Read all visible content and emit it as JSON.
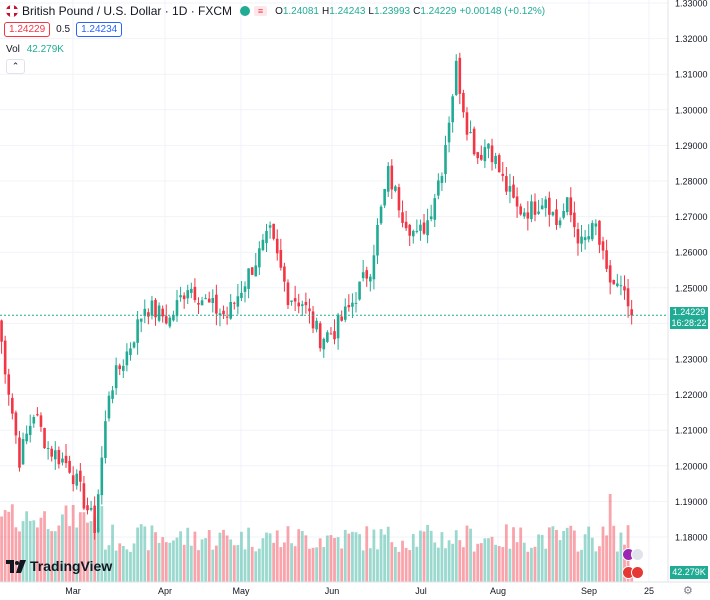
{
  "header": {
    "symbol_title": "British Pound / U.S. Dollar · 1D · FXCM",
    "ohlc": [
      {
        "key": "O",
        "value": "1.24081"
      },
      {
        "key": "H",
        "value": "1.24243"
      },
      {
        "key": "L",
        "value": "1.23993"
      },
      {
        "key": "C",
        "value": "1.24229"
      }
    ],
    "change": "+0.00148 (+0.12%)",
    "sell_price": "1.24229",
    "spread": "0.5",
    "buy_price": "1.24234"
  },
  "volume": {
    "label": "Vol",
    "value": "42.279K"
  },
  "price_axis": {
    "current_price": "1.24229",
    "countdown": "16:28:22",
    "current_volume": "42.279K"
  },
  "brand": {
    "name": "TradingView"
  },
  "colors": {
    "up": "#22ab94",
    "down": "#f23645",
    "grid": "#f0f3fa"
  },
  "chart_data": {
    "type": "candlestick",
    "yticks": [
      "1.33000",
      "1.32000",
      "1.31000",
      "1.30000",
      "1.29000",
      "1.28000",
      "1.27000",
      "1.26000",
      "1.25000",
      "1.24000",
      "1.23000",
      "1.22000",
      "1.21000",
      "1.20000",
      "1.19000",
      "1.18000"
    ],
    "ylim": [
      1.1755,
      1.33
    ],
    "xticks": [
      "Mar",
      "Apr",
      "May",
      "Jun",
      "Jul",
      "Aug",
      "Sep",
      "25"
    ],
    "anchors": [
      [
        0,
        1.241
      ],
      [
        6,
        1.202
      ],
      [
        10,
        1.215
      ],
      [
        14,
        1.205
      ],
      [
        20,
        1.2
      ],
      [
        27,
        1.183
      ],
      [
        31,
        1.221
      ],
      [
        37,
        1.234
      ],
      [
        41,
        1.245
      ],
      [
        48,
        1.241
      ],
      [
        53,
        1.251
      ],
      [
        59,
        1.245
      ],
      [
        64,
        1.242
      ],
      [
        70,
        1.254
      ],
      [
        76,
        1.265
      ],
      [
        81,
        1.248
      ],
      [
        85,
        1.246
      ],
      [
        90,
        1.236
      ],
      [
        94,
        1.238
      ],
      [
        98,
        1.244
      ],
      [
        104,
        1.256
      ],
      [
        109,
        1.282
      ],
      [
        113,
        1.271
      ],
      [
        117,
        1.264
      ],
      [
        120,
        1.269
      ],
      [
        124,
        1.284
      ],
      [
        128,
        1.312
      ],
      [
        131,
        1.296
      ],
      [
        134,
        1.287
      ],
      [
        137,
        1.291
      ],
      [
        141,
        1.28
      ],
      [
        145,
        1.272
      ],
      [
        149,
        1.272
      ],
      [
        153,
        1.276
      ],
      [
        156,
        1.268
      ],
      [
        159,
        1.273
      ],
      [
        163,
        1.262
      ],
      [
        167,
        1.267
      ],
      [
        170,
        1.253
      ],
      [
        174,
        1.249
      ],
      [
        177,
        1.2423
      ]
    ]
  }
}
